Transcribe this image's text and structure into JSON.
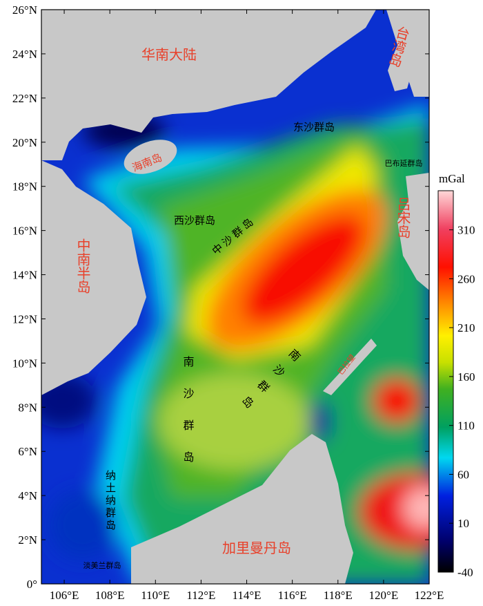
{
  "map": {
    "xlim": [
      105,
      122
    ],
    "ylim": [
      0,
      26
    ],
    "xticks": [
      {
        "value": 106,
        "label": "106°E"
      },
      {
        "value": 108,
        "label": "108°E"
      },
      {
        "value": 110,
        "label": "110°E"
      },
      {
        "value": 112,
        "label": "112°E"
      },
      {
        "value": 114,
        "label": "114°E"
      },
      {
        "value": 116,
        "label": "116°E"
      },
      {
        "value": 118,
        "label": "118°E"
      },
      {
        "value": 120,
        "label": "120°E"
      },
      {
        "value": 122,
        "label": "122°E"
      }
    ],
    "yticks": [
      {
        "value": 0,
        "label": "0°"
      },
      {
        "value": 2,
        "label": "2°N"
      },
      {
        "value": 4,
        "label": "4°N"
      },
      {
        "value": 6,
        "label": "6°N"
      },
      {
        "value": 8,
        "label": "8°N"
      },
      {
        "value": 10,
        "label": "10°N"
      },
      {
        "value": 12,
        "label": "12°N"
      },
      {
        "value": 14,
        "label": "14°N"
      },
      {
        "value": 16,
        "label": "16°N"
      },
      {
        "value": 18,
        "label": "18°N"
      },
      {
        "value": 20,
        "label": "20°N"
      },
      {
        "value": 22,
        "label": "22°N"
      },
      {
        "value": 24,
        "label": "24°N"
      },
      {
        "value": 26,
        "label": "26°N"
      }
    ],
    "colorbar": {
      "title": "mGal",
      "lim": [
        -40,
        350
      ],
      "ticks": [
        -40,
        10,
        60,
        110,
        160,
        210,
        260,
        310
      ]
    },
    "labels": [
      "华南大陆",
      "台湾岛",
      "海南岛",
      "东沙群岛",
      "巴布延群岛",
      "西沙群岛",
      "中沙群岛",
      "吕宋岛",
      "中南半岛",
      "南沙群岛",
      "南沙群岛",
      "巴拉望",
      "纳土纳群岛",
      "淡美兰群岛",
      "加里曼丹岛"
    ]
  }
}
